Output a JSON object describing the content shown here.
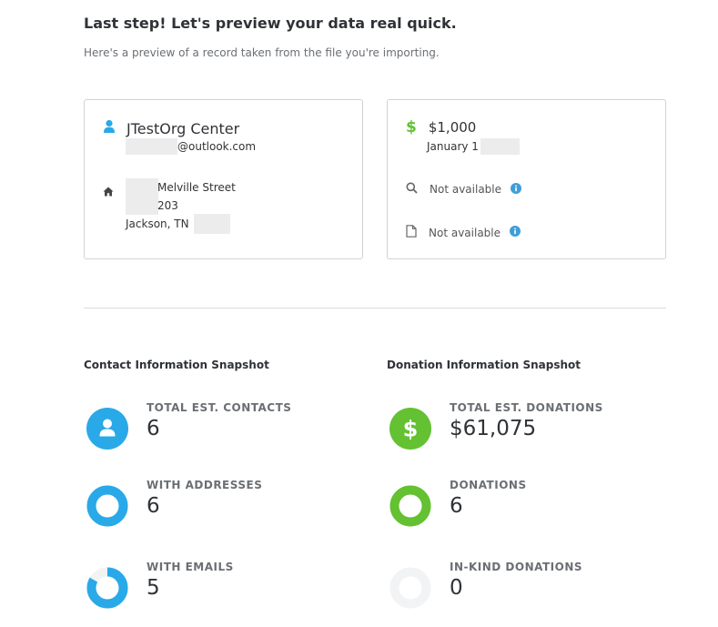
{
  "header": {
    "title": "Last step! Let's preview your data real quick.",
    "subtitle": "Here's a preview of a record taken from the file you're importing."
  },
  "contact_card": {
    "name": "JTestOrg Center",
    "email_domain": "@outlook.com",
    "address_street": "Melville Street",
    "address_unit": "203",
    "address_city": "Jackson, TN",
    "icons": [
      "user-icon",
      "home-icon"
    ]
  },
  "donation_card": {
    "amount": "$1,000",
    "date": "January 1",
    "campaign": "Not available",
    "note": "Not available",
    "icons": [
      "dollar-icon",
      "search-icon",
      "file-icon",
      "info-icon"
    ]
  },
  "contact_snapshot": {
    "title": "Contact Information Snapshot",
    "stats": [
      {
        "label": "TOTAL EST. CONTACTS",
        "value": "6"
      },
      {
        "label": "WITH ADDRESSES",
        "value": "6"
      },
      {
        "label": "WITH EMAILS",
        "value": "5"
      }
    ]
  },
  "donation_snapshot": {
    "title": "Donation Information Snapshot",
    "stats": [
      {
        "label": "TOTAL EST. DONATIONS",
        "value": "$61,075"
      },
      {
        "label": "DONATIONS",
        "value": "6"
      },
      {
        "label": "IN-KIND DONATIONS",
        "value": "0"
      }
    ]
  },
  "colors": {
    "blue": "#29a9e8",
    "green": "#63c132",
    "empty_ring": "#f2f3f4",
    "info": "#3f9ed8"
  },
  "rings": {
    "with_emails_fraction": 0.833
  }
}
